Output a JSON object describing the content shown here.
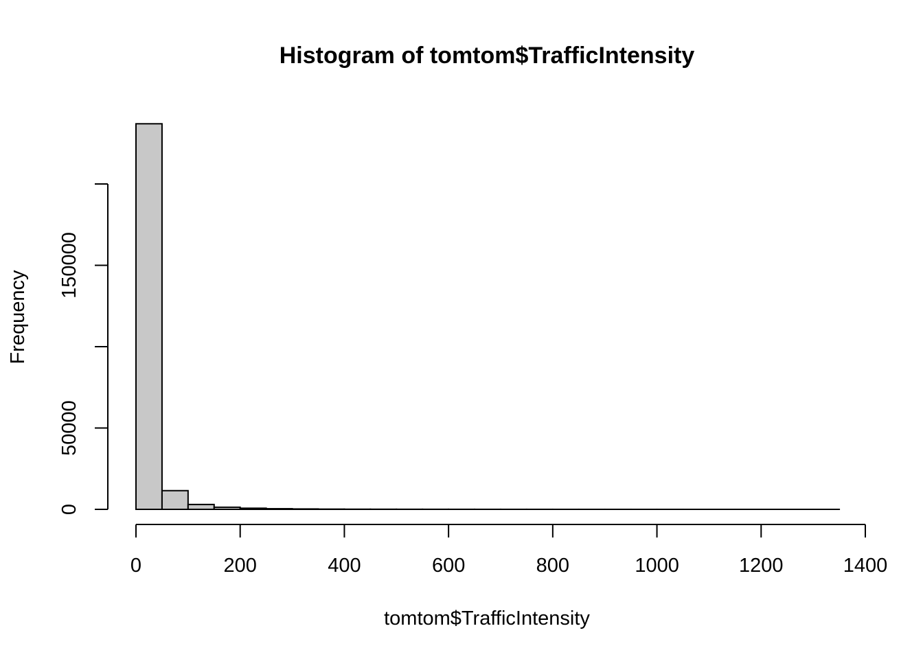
{
  "chart_data": {
    "type": "bar",
    "title": "Histogram of tomtom$TrafficIntensity",
    "xlabel": "tomtom$TrafficIntensity",
    "ylabel": "Frequency",
    "xlim": [
      0,
      1400
    ],
    "ylim": [
      0,
      200000
    ],
    "x_ticks": [
      0,
      200,
      400,
      600,
      800,
      1000,
      1200,
      1400
    ],
    "x_tick_labels": [
      "0",
      "200",
      "400",
      "600",
      "800",
      "1000",
      "1200",
      "1400"
    ],
    "y_ticks": [
      0,
      50000,
      100000,
      150000,
      200000
    ],
    "y_tick_labels": [
      "0",
      "50000",
      "",
      "150000",
      ""
    ],
    "bin_width": 50,
    "bin_starts": [
      0,
      50,
      100,
      150,
      200,
      250,
      300,
      350,
      400,
      450,
      500,
      550,
      600,
      650,
      700,
      750,
      800,
      850,
      900,
      950,
      1000,
      1050,
      1100,
      1150,
      1200,
      1250,
      1300
    ],
    "values": [
      237000,
      11500,
      3000,
      1300,
      700,
      400,
      250,
      150,
      100,
      80,
      60,
      50,
      40,
      30,
      25,
      20,
      15,
      12,
      10,
      8,
      6,
      5,
      4,
      3,
      3,
      2,
      2
    ],
    "bar_fill": "#c8c8c8",
    "grid": false
  }
}
